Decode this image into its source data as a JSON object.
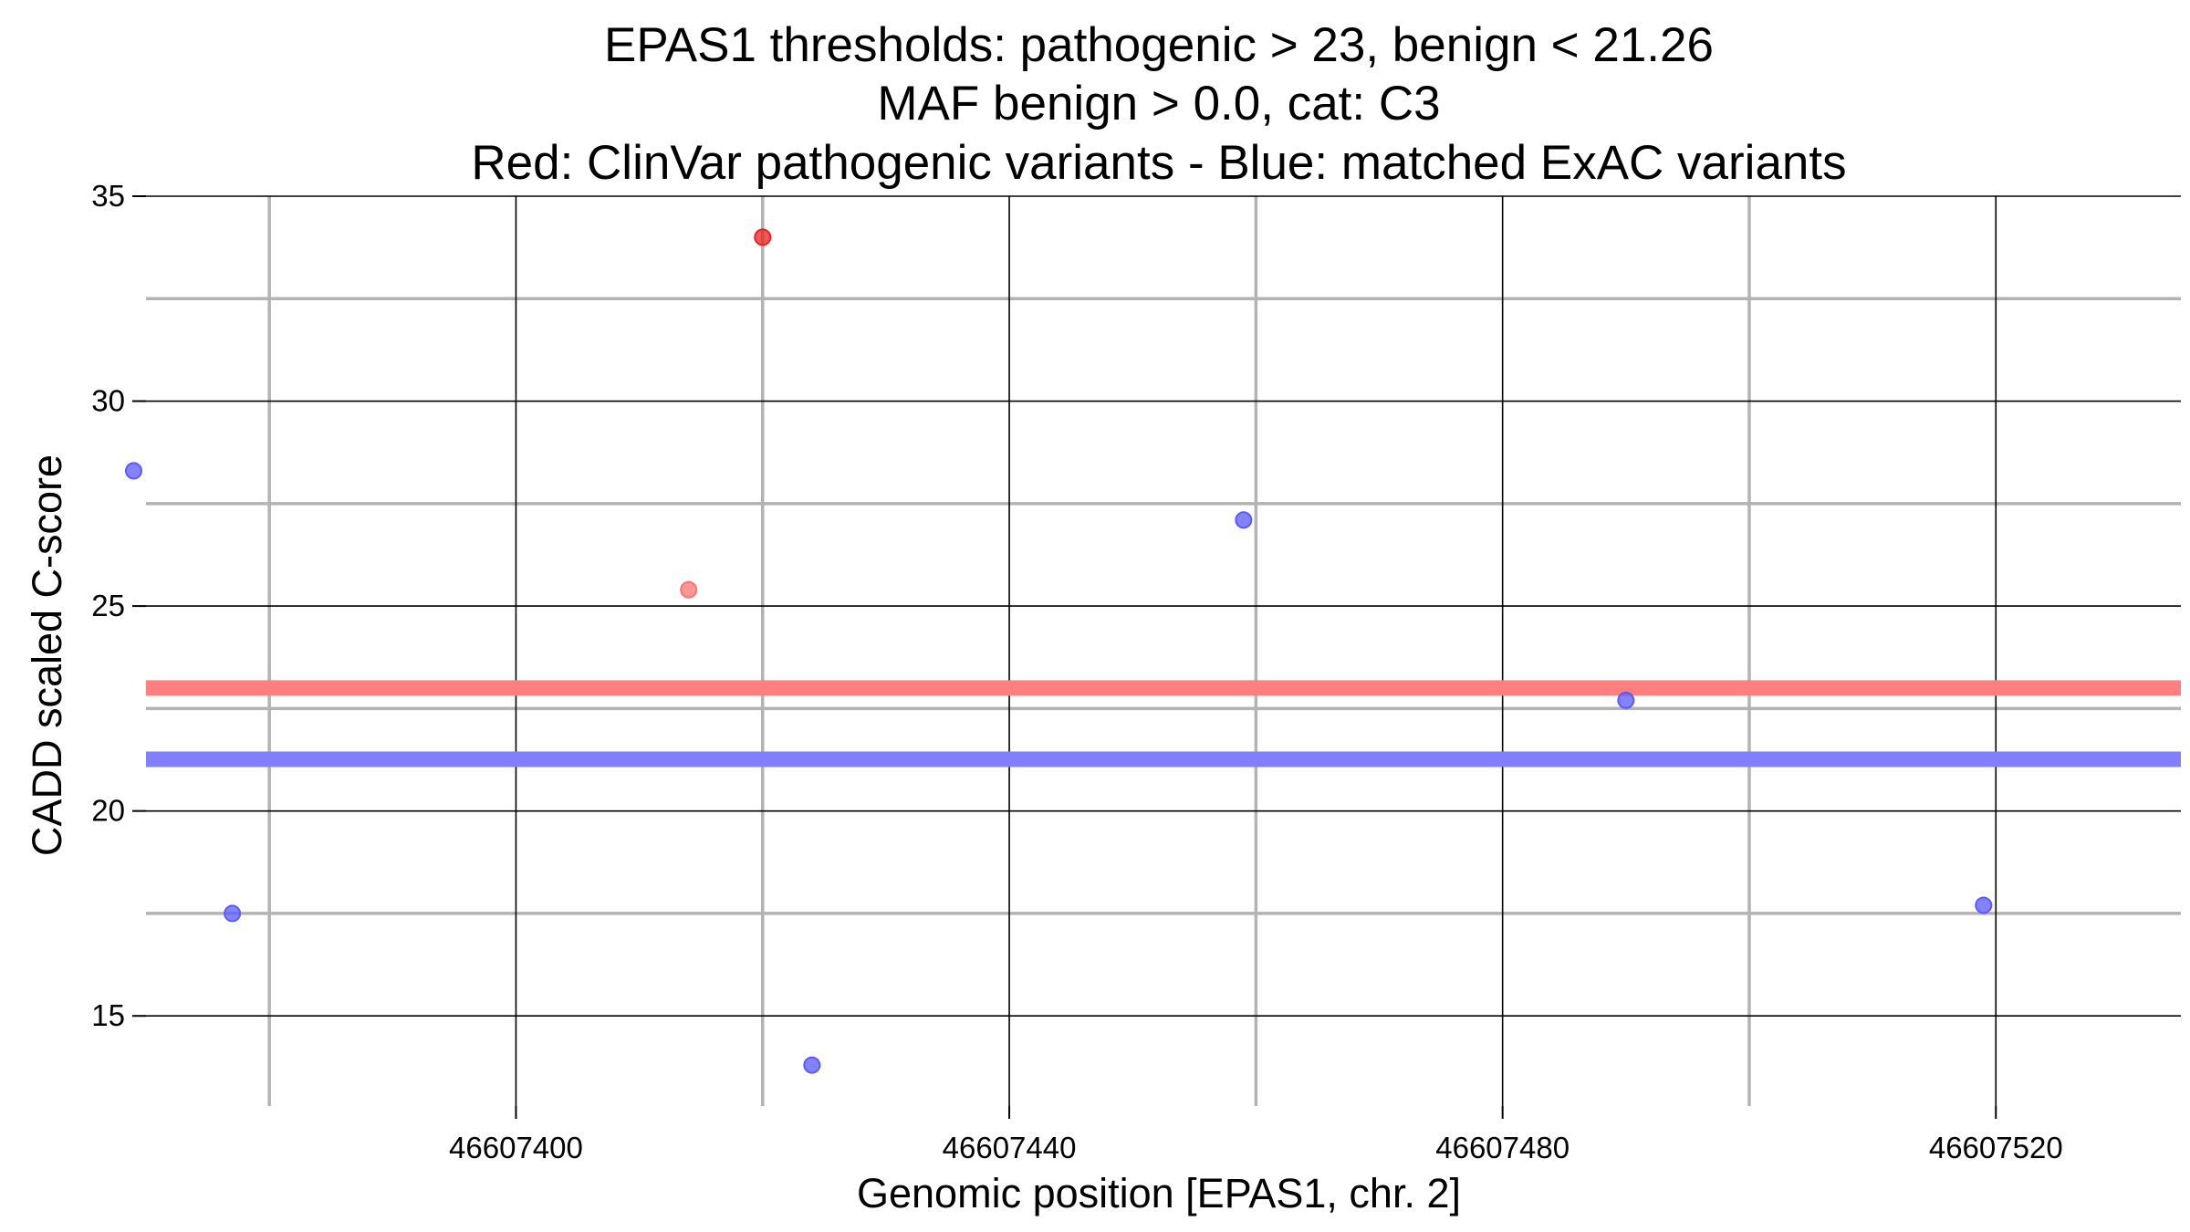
{
  "chart_data": {
    "type": "scatter",
    "title_lines": [
      "EPAS1 thresholds: pathogenic > 23, benign < 21.26",
      "MAF benign > 0.0, cat: C3",
      "Red: ClinVar pathogenic variants - Blue: matched ExAC variants"
    ],
    "xlabel": "Genomic position [EPAS1, chr. 2]",
    "ylabel": "CADD scaled C-score",
    "xlim": [
      46607370,
      46607535
    ],
    "ylim": [
      12.8,
      35
    ],
    "x_major_ticks": [
      46607400,
      46607440,
      46607480,
      46607520
    ],
    "x_tick_labels": [
      "46607400",
      "46607440",
      "46607480",
      "46607520"
    ],
    "x_minor_grid": [
      46607380,
      46607420,
      46607460,
      46607500
    ],
    "y_major_ticks": [
      15,
      20,
      25,
      30,
      35
    ],
    "y_tick_labels": [
      "15",
      "20",
      "25",
      "30",
      "35"
    ],
    "y_minor_grid": [
      17.5,
      22.5,
      27.5,
      32.5
    ],
    "grid": true,
    "thresholds": [
      {
        "name": "pathogenic",
        "value": 23,
        "color": "#ff7f7f"
      },
      {
        "name": "benign",
        "value": 21.26,
        "color": "#7f7fff"
      }
    ],
    "series": [
      {
        "color": "#ff0000",
        "points": [
          {
            "x": 46607420,
            "y": 34.0,
            "color": "#e8211f"
          },
          {
            "x": 46607414,
            "y": 25.4,
            "color": "#ff7373"
          }
        ]
      },
      {
        "color": "#5a5aff",
        "points": [
          {
            "x": 46607369,
            "y": 28.3
          },
          {
            "x": 46607377,
            "y": 17.5
          },
          {
            "x": 46607424,
            "y": 13.8
          },
          {
            "x": 46607459,
            "y": 27.1
          },
          {
            "x": 46607490,
            "y": 22.7
          },
          {
            "x": 46607519,
            "y": 17.7
          }
        ]
      }
    ]
  }
}
